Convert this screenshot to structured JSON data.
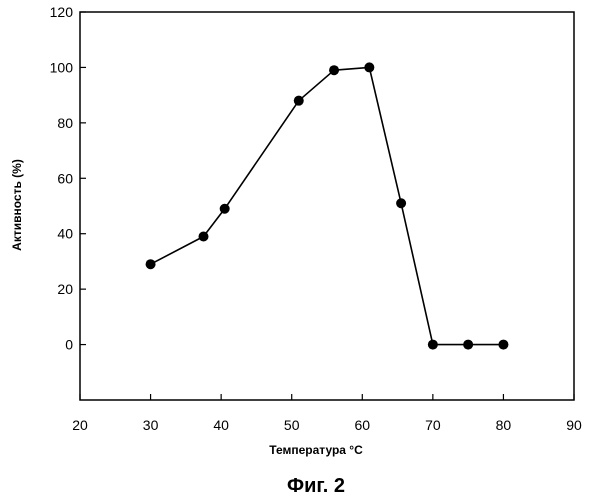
{
  "chart_data": {
    "type": "line",
    "xlabel": "Температура °С",
    "ylabel": "Активность (%)",
    "xlim": [
      20,
      90
    ],
    "ylim": [
      -20,
      120
    ],
    "x_ticks": [
      20,
      30,
      40,
      50,
      60,
      70,
      80,
      90
    ],
    "y_ticks": [
      0,
      20,
      40,
      60,
      80,
      100,
      120
    ],
    "grid": false,
    "series": [
      {
        "x": [
          30,
          37.5,
          40.5,
          51,
          56,
          61,
          65.5,
          70,
          75,
          80
        ],
        "y": [
          29,
          39,
          49,
          88,
          99,
          100,
          51,
          0,
          0,
          0
        ],
        "color": "#000000"
      }
    ]
  },
  "caption": "Фиг. 2"
}
